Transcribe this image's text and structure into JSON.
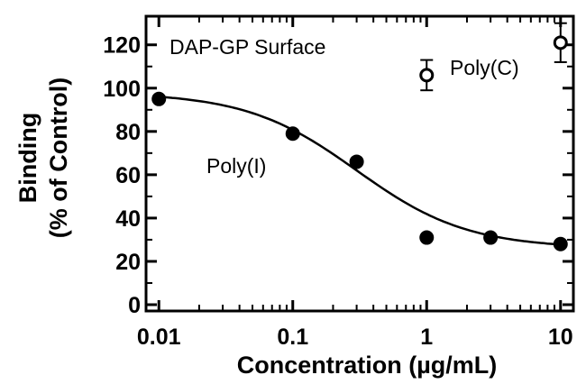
{
  "chart_data": {
    "type": "scatter",
    "title": "",
    "xlabel": "Concentration (µg/mL)",
    "ylabel_line1": "Binding",
    "ylabel_line2": "(% of Control)",
    "x_scale": "log",
    "xlim": [
      0.01,
      10
    ],
    "ylim": [
      0,
      130
    ],
    "x_ticks": [
      0.01,
      0.1,
      1,
      10
    ],
    "x_tick_labels": [
      "0.01",
      "0.1",
      "1",
      "10"
    ],
    "y_ticks": [
      0,
      20,
      40,
      60,
      80,
      100,
      120
    ],
    "y_tick_labels": [
      "0",
      "20",
      "40",
      "60",
      "80",
      "100",
      "120"
    ],
    "grid": false,
    "legend": "none",
    "annotations": [
      {
        "text": "DAP-GP Surface"
      },
      {
        "text": "Poly(I)"
      },
      {
        "text": "Poly(C)"
      }
    ],
    "series": [
      {
        "name": "Poly(I)",
        "marker": "filled-circle",
        "color": "#000000",
        "points": [
          {
            "x": 0.01,
            "y": 95
          },
          {
            "x": 0.1,
            "y": 79
          },
          {
            "x": 0.3,
            "y": 66
          },
          {
            "x": 1,
            "y": 31
          },
          {
            "x": 3,
            "y": 31
          },
          {
            "x": 10,
            "y": 28
          }
        ],
        "fit": {
          "type": "sigmoid",
          "top": 98,
          "bottom": 26,
          "ec50": 0.3,
          "hill": 1.05
        }
      },
      {
        "name": "Poly(C)",
        "marker": "open-circle",
        "color": "#000000",
        "points": [
          {
            "x": 1,
            "y": 106,
            "err": 7
          },
          {
            "x": 10,
            "y": 121,
            "err": 9
          }
        ]
      }
    ]
  }
}
